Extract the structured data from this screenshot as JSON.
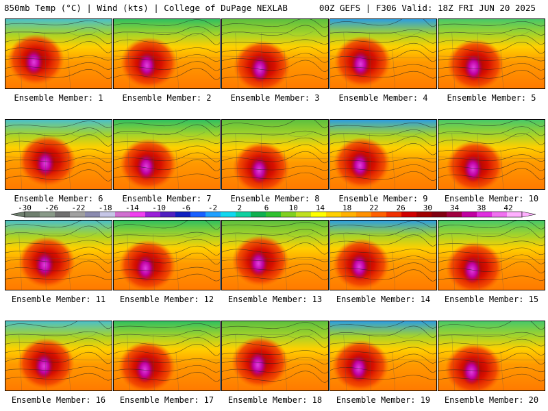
{
  "header": {
    "title_left": "850mb Temp (°C) | Wind (kts) | College of DuPage NEXLAB",
    "title_right": "00Z GEFS | F306 Valid: 18Z FRI JUN 20 2025"
  },
  "members": [
    {
      "label": "Ensemble Member: 1"
    },
    {
      "label": "Ensemble Member: 2"
    },
    {
      "label": "Ensemble Member: 3"
    },
    {
      "label": "Ensemble Member: 4"
    },
    {
      "label": "Ensemble Member: 5"
    },
    {
      "label": "Ensemble Member: 6"
    },
    {
      "label": "Ensemble Member: 7"
    },
    {
      "label": "Ensemble Member: 8"
    },
    {
      "label": "Ensemble Member: 9"
    },
    {
      "label": "Ensemble Member: 10"
    },
    {
      "label": "Ensemble Member: 11"
    },
    {
      "label": "Ensemble Member: 12"
    },
    {
      "label": "Ensemble Member: 13"
    },
    {
      "label": "Ensemble Member: 14"
    },
    {
      "label": "Ensemble Member: 15"
    },
    {
      "label": "Ensemble Member: 16"
    },
    {
      "label": "Ensemble Member: 17"
    },
    {
      "label": "Ensemble Member: 18"
    },
    {
      "label": "Ensemble Member: 19"
    },
    {
      "label": "Ensemble Member: 20"
    }
  ],
  "colorbar": {
    "ticks": [
      "-30",
      "-26",
      "-22",
      "-18",
      "-14",
      "-10",
      "-6",
      "-2",
      "2",
      "6",
      "10",
      "14",
      "18",
      "22",
      "26",
      "30",
      "34",
      "38",
      "42"
    ],
    "colors": [
      "#6e7f6e",
      "#889988",
      "#6f6f6f",
      "#a0a0a0",
      "#8b8bb0",
      "#c6c6e6",
      "#d070d0",
      "#f040f0",
      "#9a20d8",
      "#5020c0",
      "#1020c0",
      "#1860ff",
      "#20a0ff",
      "#10d8f0",
      "#10d0a0",
      "#10b050",
      "#30c030",
      "#80d020",
      "#c0e020",
      "#ffff00",
      "#ffd000",
      "#ffb000",
      "#ff9000",
      "#ff6000",
      "#f03000",
      "#d00000",
      "#a00000",
      "#800010",
      "#a00040",
      "#c000a0",
      "#e030e0",
      "#f070f0",
      "#ffb0ff"
    ]
  }
}
